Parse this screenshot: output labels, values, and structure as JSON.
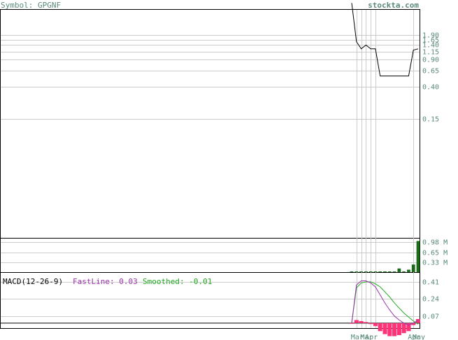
{
  "header": {
    "symbol_label": "Symbol: GPGNF",
    "site": "stockta.com"
  },
  "macd_legend": {
    "name": "MACD(12-26-9)",
    "fast_label": "FastLine: 0.03",
    "smooth_label": "Smoothed: -0.01"
  },
  "colors": {
    "text_teal": "#5a8a7a",
    "grid": "#cccccc",
    "price_line": "#000000",
    "volume_bar": "#1a6b1a",
    "fast_line": "#9933aa",
    "smooth_line": "#22aa22",
    "histogram": "#ff3377"
  },
  "chart_data": [
    {
      "type": "line",
      "name": "price",
      "scale": "log",
      "y_ticks": [
        "1.90",
        "1.65",
        "1.40",
        "1.15",
        "0.90",
        "0.65",
        "0.40",
        "0.15"
      ],
      "y_tick_values": [
        1.9,
        1.65,
        1.4,
        1.15,
        0.9,
        0.65,
        0.4,
        0.15
      ],
      "points": [
        {
          "t": 0,
          "y": 5.0
        },
        {
          "t": 1,
          "y": 1.55
        },
        {
          "t": 2,
          "y": 1.25
        },
        {
          "t": 3,
          "y": 1.4
        },
        {
          "t": 4,
          "y": 1.25
        },
        {
          "t": 5,
          "y": 1.25
        },
        {
          "t": 6,
          "y": 0.55
        },
        {
          "t": 7,
          "y": 0.55
        },
        {
          "t": 8,
          "y": 0.55
        },
        {
          "t": 9,
          "y": 0.55
        },
        {
          "t": 10,
          "y": 0.55
        },
        {
          "t": 11,
          "y": 0.55
        },
        {
          "t": 12,
          "y": 0.55
        },
        {
          "t": 13,
          "y": 1.2
        },
        {
          "t": 14,
          "y": 1.25
        }
      ],
      "t_range": [
        0,
        14
      ]
    },
    {
      "type": "bar",
      "name": "volume",
      "y_ticks": [
        "0.98 M",
        "0.65 M",
        "0.33 M"
      ],
      "y_tick_values": [
        0.98,
        0.65,
        0.33
      ],
      "ylim": [
        0,
        1.1
      ],
      "bars": [
        {
          "t": 0,
          "v": 0.01
        },
        {
          "t": 1,
          "v": 0.01
        },
        {
          "t": 2,
          "v": 0.01
        },
        {
          "t": 3,
          "v": 0.01
        },
        {
          "t": 4,
          "v": 0.01
        },
        {
          "t": 5,
          "v": 0.01
        },
        {
          "t": 6,
          "v": 0.01
        },
        {
          "t": 7,
          "v": 0.01
        },
        {
          "t": 8,
          "v": 0.01
        },
        {
          "t": 9,
          "v": 0.01
        },
        {
          "t": 10,
          "v": 0.12
        },
        {
          "t": 11,
          "v": 0.01
        },
        {
          "t": 12,
          "v": 0.08
        },
        {
          "t": 13,
          "v": 0.25
        },
        {
          "t": 14,
          "v": 1.02
        }
      ]
    },
    {
      "type": "line",
      "name": "macd",
      "y_ticks": [
        "0.41",
        "0.24",
        "0.07"
      ],
      "y_tick_values": [
        0.41,
        0.24,
        0.07
      ],
      "ylim": [
        -0.05,
        0.5
      ],
      "fast": [
        {
          "t": 0,
          "v": 0.0
        },
        {
          "t": 1,
          "v": 0.38
        },
        {
          "t": 2,
          "v": 0.42
        },
        {
          "t": 3,
          "v": 0.42
        },
        {
          "t": 4,
          "v": 0.4
        },
        {
          "t": 5,
          "v": 0.36
        },
        {
          "t": 6,
          "v": 0.28
        },
        {
          "t": 7,
          "v": 0.2
        },
        {
          "t": 8,
          "v": 0.13
        },
        {
          "t": 9,
          "v": 0.07
        },
        {
          "t": 10,
          "v": 0.03
        },
        {
          "t": 11,
          "v": 0.0
        },
        {
          "t": 12,
          "v": -0.02
        },
        {
          "t": 13,
          "v": 0.0
        },
        {
          "t": 14,
          "v": 0.03
        }
      ],
      "smoothed": [
        {
          "t": 0,
          "v": 0.0
        },
        {
          "t": 1,
          "v": 0.35
        },
        {
          "t": 2,
          "v": 0.4
        },
        {
          "t": 3,
          "v": 0.41
        },
        {
          "t": 4,
          "v": 0.41
        },
        {
          "t": 5,
          "v": 0.39
        },
        {
          "t": 6,
          "v": 0.36
        },
        {
          "t": 7,
          "v": 0.31
        },
        {
          "t": 8,
          "v": 0.26
        },
        {
          "t": 9,
          "v": 0.2
        },
        {
          "t": 10,
          "v": 0.15
        },
        {
          "t": 11,
          "v": 0.1
        },
        {
          "t": 12,
          "v": 0.06
        },
        {
          "t": 13,
          "v": 0.02
        },
        {
          "t": 14,
          "v": -0.01
        }
      ],
      "histogram": [
        {
          "t": 0,
          "v": 0.0
        },
        {
          "t": 1,
          "v": 0.03
        },
        {
          "t": 2,
          "v": 0.02
        },
        {
          "t": 3,
          "v": 0.01
        },
        {
          "t": 4,
          "v": -0.01
        },
        {
          "t": 5,
          "v": -0.03
        },
        {
          "t": 6,
          "v": -0.08
        },
        {
          "t": 7,
          "v": -0.11
        },
        {
          "t": 8,
          "v": -0.13
        },
        {
          "t": 9,
          "v": -0.13
        },
        {
          "t": 10,
          "v": -0.12
        },
        {
          "t": 11,
          "v": -0.1
        },
        {
          "t": 12,
          "v": -0.08
        },
        {
          "t": 13,
          "v": -0.02
        },
        {
          "t": 14,
          "v": 0.04
        }
      ]
    }
  ],
  "x_axis": {
    "labels": [
      "Mar",
      "Mar",
      "Apr",
      "Apr",
      "May"
    ]
  }
}
